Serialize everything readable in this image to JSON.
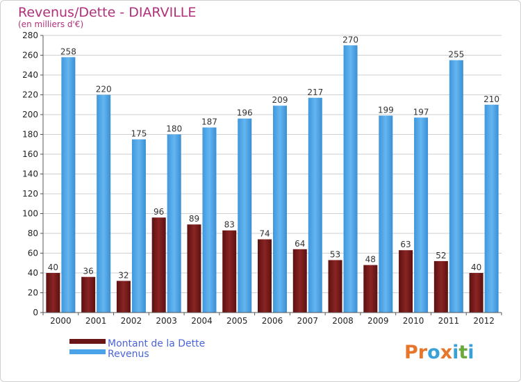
{
  "chart_data": {
    "type": "bar",
    "title": "Revenus/Dette - DIARVILLE",
    "subtitle": "(en milliers d'€)",
    "categories": [
      "2000",
      "2001",
      "2002",
      "2003",
      "2004",
      "2005",
      "2006",
      "2007",
      "2008",
      "2009",
      "2010",
      "2011",
      "2012"
    ],
    "series": [
      {
        "name": "Montant de la Dette",
        "color": "#7a1c1c",
        "values": [
          40,
          36,
          32,
          96,
          89,
          83,
          74,
          64,
          53,
          48,
          63,
          52,
          40
        ]
      },
      {
        "name": "Revenus",
        "color": "#4aa3e8",
        "values": [
          258,
          220,
          175,
          180,
          187,
          196,
          209,
          217,
          270,
          199,
          197,
          255,
          210
        ]
      }
    ],
    "ylim": [
      0,
      280
    ],
    "yticks": [
      0,
      20,
      40,
      60,
      80,
      100,
      120,
      140,
      160,
      180,
      200,
      220,
      240,
      260,
      280
    ],
    "grid": true,
    "legend": "bottom-left"
  },
  "logo": {
    "text": "Proxiti",
    "colors": [
      "#e8762a",
      "#e8762a",
      "#3aa0d8",
      "#e8762a",
      "#3aa0d8",
      "#6aaa3a",
      "#3aa0d8"
    ]
  }
}
